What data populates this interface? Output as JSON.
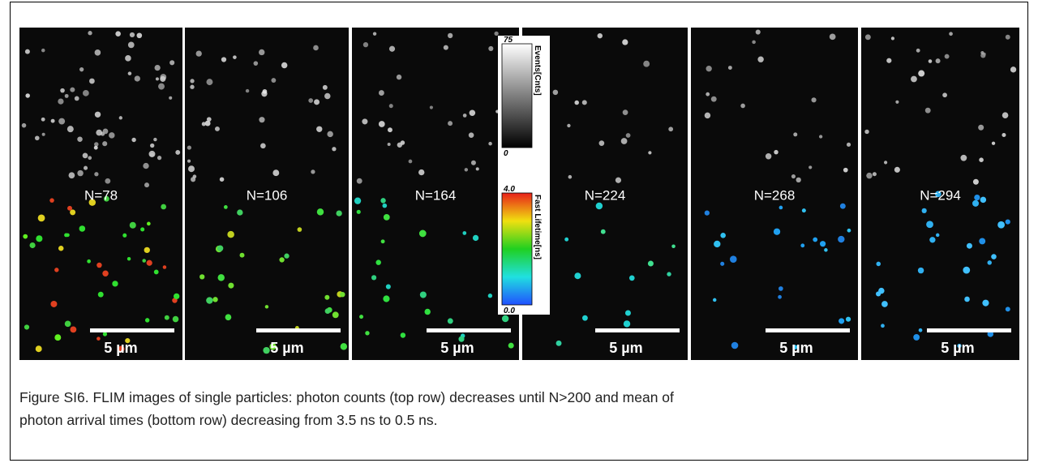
{
  "figure": {
    "panels": [
      {
        "label": "N=78",
        "scale_bar": "5 µm"
      },
      {
        "label": "N=106",
        "scale_bar": "5 µm"
      },
      {
        "label": "N=164",
        "scale_bar": "5 µm"
      },
      {
        "label": "N=224",
        "scale_bar": "5 µm"
      },
      {
        "label": "N=268",
        "scale_bar": "5 µm"
      },
      {
        "label": "N=294",
        "scale_bar": "5 µm"
      }
    ],
    "colorbars": [
      {
        "max": "75",
        "min": "0",
        "title": "Events[Cnts]"
      },
      {
        "max": "4.0",
        "min": "0.0",
        "title": "Fast Lifetime[ns]"
      }
    ],
    "caption_lines": [
      "Figure SI6. FLIM images of single particles: photon counts (top row) decreases until N>200 and mean of",
      "photon arrival times (bottom row) decreasing from 3.5 ns to 0.5 ns."
    ]
  }
}
